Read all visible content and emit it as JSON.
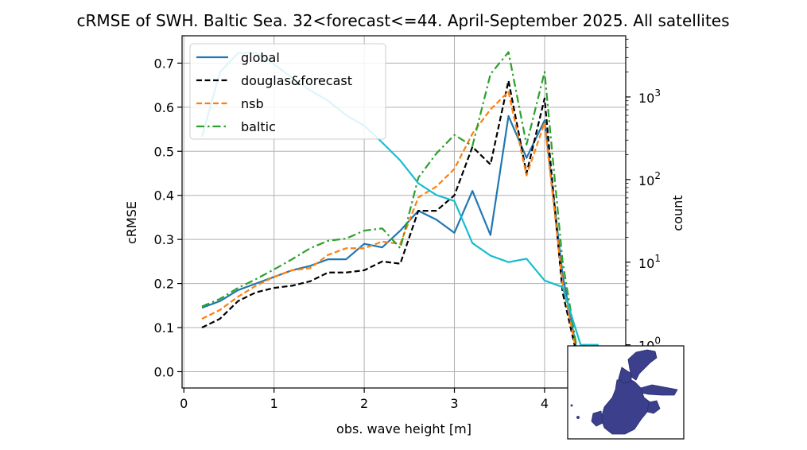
{
  "chart_data": {
    "type": "line",
    "title": "cRMSE of SWH. Baltic Sea. 32<forecast<=44. April-September 2025. All satellites",
    "xlabel": "obs. wave height [m]",
    "ylabel": "cRMSE",
    "y2label": "count",
    "xlim": [
      -0.02,
      4.9
    ],
    "ylim": [
      -0.037,
      0.762
    ],
    "y2scale": "log",
    "y2lim": [
      0.3,
      5500
    ],
    "grid": true,
    "legend_position": "upper-left",
    "x_ticks": [
      0,
      1,
      2,
      3,
      4
    ],
    "x_tick_labels": [
      "0",
      "1",
      "2",
      "3",
      "4"
    ],
    "y_ticks": [
      0.0,
      0.1,
      0.2,
      0.3,
      0.4,
      0.5,
      0.6,
      0.7
    ],
    "y_tick_labels": [
      "0.0",
      "0.1",
      "0.2",
      "0.3",
      "0.4",
      "0.5",
      "0.6",
      "0.7"
    ],
    "y2_ticks": [
      1,
      10,
      100,
      1000
    ],
    "y2_tick_labels": [
      {
        "base": "10",
        "exp": "0"
      },
      {
        "base": "10",
        "exp": "1"
      },
      {
        "base": "10",
        "exp": "2"
      },
      {
        "base": "10",
        "exp": "3"
      }
    ],
    "x": [
      0.2,
      0.4,
      0.6,
      0.8,
      1.0,
      1.2,
      1.4,
      1.6,
      1.8,
      2.0,
      2.2,
      2.4,
      2.6,
      2.8,
      3.0,
      3.2,
      3.4,
      3.6,
      3.8,
      4.0,
      4.2,
      4.4,
      4.6
    ],
    "series": [
      {
        "name": "global",
        "color": "#1f77b4",
        "dash": "solid",
        "axis": "left",
        "values": [
          0.145,
          0.16,
          0.185,
          0.2,
          0.215,
          0.23,
          0.24,
          0.255,
          0.255,
          0.29,
          0.282,
          0.32,
          0.365,
          0.345,
          0.315,
          0.41,
          0.31,
          0.58,
          0.485,
          0.57,
          0.22,
          0.0,
          null
        ]
      },
      {
        "name": "douglas&forecast",
        "color": "#000000",
        "dash": "dashed",
        "axis": "left",
        "values": [
          0.1,
          0.12,
          0.16,
          0.18,
          0.19,
          0.195,
          0.205,
          0.225,
          0.225,
          0.23,
          0.25,
          0.245,
          0.365,
          0.365,
          0.4,
          0.51,
          0.47,
          0.66,
          0.45,
          0.62,
          0.18,
          0.0,
          null
        ]
      },
      {
        "name": "nsb",
        "color": "#ff7f0e",
        "dash": "dashed",
        "axis": "left",
        "values": [
          0.12,
          0.14,
          0.17,
          0.195,
          0.215,
          0.23,
          0.235,
          0.265,
          0.28,
          0.28,
          0.295,
          0.29,
          0.395,
          0.42,
          0.46,
          0.54,
          0.595,
          0.635,
          0.445,
          0.565,
          0.2,
          0.0,
          null
        ]
      },
      {
        "name": "baltic",
        "color": "#2ca02c",
        "dash": "dashdot",
        "axis": "left",
        "values": [
          0.148,
          0.165,
          0.19,
          0.21,
          0.232,
          0.255,
          0.28,
          0.297,
          0.302,
          0.32,
          0.325,
          0.28,
          0.44,
          0.495,
          0.537,
          0.512,
          0.675,
          0.725,
          0.515,
          0.68,
          0.25,
          0.0,
          null
        ]
      },
      {
        "name": "count",
        "color": "#17becf",
        "dash": "solid",
        "axis": "right",
        "values": [
          330,
          2000,
          3400,
          3400,
          2500,
          1700,
          1200,
          900,
          600,
          450,
          280,
          170,
          90,
          65,
          55,
          17,
          12,
          10,
          11,
          6,
          5,
          1,
          1
        ]
      }
    ],
    "legend_entries": [
      "global",
      "douglas&forecast",
      "nsb",
      "baltic"
    ]
  },
  "inset": {
    "map_color": "#3b3f8c"
  }
}
